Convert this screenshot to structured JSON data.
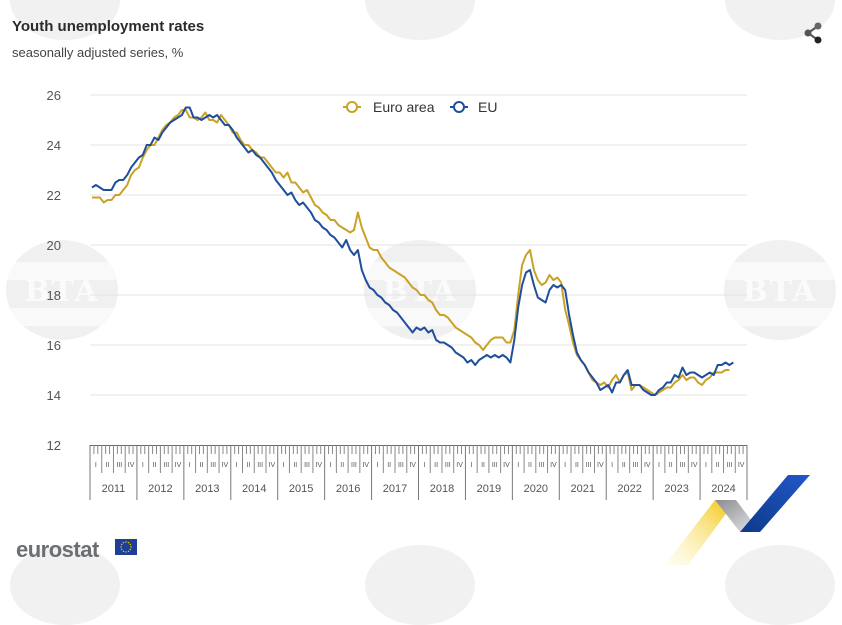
{
  "header": {
    "title": "Youth unemployment rates",
    "subtitle": "seasonally adjusted series, %"
  },
  "share_icon": "share-icon",
  "footer": {
    "logo_text": "eurostat",
    "flag_icon": "eu-flag-icon"
  },
  "watermark_text": "BTA",
  "chart_data": {
    "type": "line",
    "title": "Youth unemployment rates",
    "subtitle": "seasonally adjusted series, %",
    "xlabel": "",
    "ylabel": "",
    "ylim": [
      12,
      26
    ],
    "yticks": [
      "12",
      "14",
      "16",
      "18",
      "20",
      "22",
      "24",
      "26"
    ],
    "grid": true,
    "legend": {
      "placement": "top-center",
      "entries": [
        "Euro area",
        "EU"
      ]
    },
    "quarter_labels": [
      "I",
      "II",
      "III",
      "IV"
    ],
    "years": [
      "2011",
      "2012",
      "2013",
      "2014",
      "2015",
      "2016",
      "2017",
      "2018",
      "2019",
      "2020",
      "2021",
      "2022",
      "2023",
      "2024"
    ],
    "x_start": "2011-01",
    "x_unit": "month",
    "colors": {
      "Euro area": "#c9a227",
      "EU": "#1f4e9c"
    },
    "series": [
      {
        "name": "Euro area",
        "values": [
          21.9,
          21.9,
          21.9,
          21.7,
          21.8,
          21.8,
          22.0,
          22.0,
          22.2,
          22.4,
          22.8,
          23.0,
          23.1,
          23.5,
          23.8,
          24.0,
          24.0,
          24.3,
          24.6,
          24.8,
          24.9,
          25.1,
          25.2,
          25.4,
          25.4,
          25.1,
          25.1,
          25.0,
          25.1,
          25.3,
          25.0,
          25.0,
          24.9,
          25.2,
          25.0,
          24.8,
          24.5,
          24.5,
          24.2,
          24.0,
          24.0,
          23.8,
          23.7,
          23.5,
          23.5,
          23.3,
          23.1,
          22.9,
          22.9,
          22.7,
          22.9,
          22.5,
          22.5,
          22.3,
          22.1,
          22.2,
          21.9,
          21.6,
          21.5,
          21.3,
          21.2,
          21.0,
          21.0,
          20.8,
          20.7,
          20.6,
          20.5,
          20.6,
          21.3,
          20.7,
          20.3,
          19.9,
          19.8,
          19.8,
          19.5,
          19.3,
          19.1,
          19.0,
          18.9,
          18.8,
          18.7,
          18.5,
          18.3,
          18.2,
          18.0,
          18.0,
          17.8,
          17.7,
          17.4,
          17.2,
          17.2,
          17.1,
          16.9,
          16.7,
          16.6,
          16.5,
          16.4,
          16.3,
          16.1,
          16.0,
          15.8,
          16.0,
          16.2,
          16.3,
          16.3,
          16.3,
          16.1,
          16.1,
          16.6,
          18.0,
          19.2,
          19.6,
          19.8,
          19.0,
          18.6,
          18.4,
          18.5,
          18.8,
          18.6,
          18.7,
          18.5,
          17.4,
          16.8,
          16.1,
          15.6,
          15.4,
          15.2,
          14.9,
          14.6,
          14.5,
          14.4,
          14.5,
          14.3,
          14.6,
          14.8,
          14.5,
          14.8,
          14.9,
          14.2,
          14.4,
          14.4,
          14.3,
          14.2,
          14.1,
          14.0,
          14.1,
          14.2,
          14.3,
          14.3,
          14.5,
          14.6,
          14.8,
          14.6,
          14.7,
          14.7,
          14.5,
          14.4,
          14.6,
          14.7,
          14.9,
          14.9,
          14.9,
          15.0,
          15.0
        ]
      },
      {
        "name": "EU",
        "values": [
          22.3,
          22.4,
          22.3,
          22.2,
          22.2,
          22.2,
          22.5,
          22.6,
          22.6,
          22.8,
          23.1,
          23.3,
          23.5,
          23.6,
          24.0,
          24.0,
          24.3,
          24.2,
          24.5,
          24.7,
          24.9,
          25.0,
          25.1,
          25.2,
          25.5,
          25.5,
          25.1,
          25.1,
          25.0,
          25.1,
          25.2,
          25.1,
          25.2,
          25.0,
          24.8,
          24.8,
          24.6,
          24.3,
          24.1,
          23.9,
          23.7,
          23.8,
          23.6,
          23.5,
          23.3,
          23.1,
          22.9,
          22.6,
          22.4,
          22.2,
          22.0,
          22.1,
          21.8,
          21.6,
          21.7,
          21.5,
          21.3,
          21.0,
          20.9,
          20.7,
          20.6,
          20.4,
          20.3,
          20.1,
          19.9,
          20.2,
          19.8,
          19.6,
          19.8,
          19.0,
          18.6,
          18.3,
          18.2,
          18.0,
          17.9,
          17.7,
          17.6,
          17.4,
          17.3,
          17.1,
          16.9,
          16.7,
          16.5,
          16.7,
          16.6,
          16.7,
          16.5,
          16.6,
          16.2,
          16.1,
          16.1,
          16.0,
          15.9,
          15.7,
          15.6,
          15.5,
          15.3,
          15.4,
          15.2,
          15.4,
          15.5,
          15.6,
          15.5,
          15.6,
          15.5,
          15.6,
          15.5,
          15.3,
          16.2,
          17.5,
          18.4,
          18.9,
          19.0,
          18.4,
          17.9,
          17.8,
          17.7,
          18.2,
          18.4,
          18.3,
          18.4,
          18.2,
          17.2,
          16.4,
          15.7,
          15.4,
          15.2,
          14.9,
          14.7,
          14.5,
          14.2,
          14.3,
          14.4,
          14.1,
          14.5,
          14.5,
          14.8,
          15.0,
          14.4,
          14.4,
          14.4,
          14.2,
          14.1,
          14.0,
          14.0,
          14.2,
          14.3,
          14.5,
          14.5,
          14.8,
          14.7,
          15.1,
          14.8,
          14.9,
          14.9,
          14.8,
          14.7,
          14.8,
          14.9,
          14.8,
          15.2,
          15.2,
          15.3,
          15.2,
          15.3
        ]
      }
    ]
  }
}
